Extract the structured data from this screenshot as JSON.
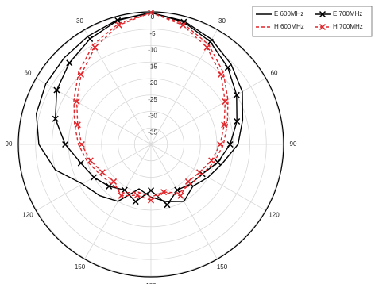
{
  "chart_data": {
    "type": "polar",
    "theta": [
      0,
      15,
      30,
      45,
      60,
      75,
      90,
      105,
      120,
      135,
      150,
      165,
      180,
      195,
      210,
      225,
      240,
      255,
      270,
      285,
      300,
      315,
      330,
      345
    ],
    "series": [
      {
        "name": "E 600MHz",
        "color": "#000000",
        "dash": "solid",
        "marker": "none",
        "values": [
          0,
          -1.2,
          -3.2,
          -5.6,
          -8,
          -11.2,
          -13.6,
          -17.6,
          -20,
          -22,
          -20,
          -22,
          -24,
          -26,
          -20,
          -18,
          -16,
          -10,
          -6,
          -4,
          -3.2,
          -2.8,
          -2,
          -0.8
        ]
      },
      {
        "name": "E 700MHz",
        "color": "#000000",
        "dash": "solid",
        "marker": "x",
        "values": [
          0,
          -1.5,
          -4,
          -7,
          -10,
          -13,
          -16,
          -19,
          -22,
          -23,
          -24,
          -21,
          -26,
          -22,
          -24,
          -22,
          -20,
          -18,
          -14,
          -10,
          -7,
          -5,
          -3,
          -1
        ]
      },
      {
        "name": "H 600MHz",
        "color": "#e0262b",
        "dash": "dashed",
        "marker": "none",
        "values": [
          0,
          -2,
          -5,
          -9,
          -13,
          -16,
          -18,
          -20,
          -22,
          -23,
          -23,
          -25,
          -24,
          -25,
          -23,
          -23,
          -22,
          -20,
          -18,
          -16,
          -13,
          -9,
          -5,
          -2
        ]
      },
      {
        "name": "H 700MHz",
        "color": "#e0262b",
        "dash": "dashed",
        "marker": "x",
        "values": [
          0,
          -2.5,
          -6,
          -10,
          -14,
          -17,
          -19,
          -21,
          -23,
          -24,
          -22,
          -25,
          -23,
          -24,
          -22,
          -24,
          -23,
          -21,
          -19,
          -17,
          -14,
          -10,
          -6,
          -2.5
        ]
      }
    ],
    "rlim": [
      -40,
      0
    ],
    "rticks": [
      0,
      -5,
      -10,
      -15,
      -20,
      -25,
      -30,
      -35
    ],
    "thetaticks": [
      30,
      60,
      90,
      120,
      150,
      180,
      {
        "value": 210,
        "label": "150"
      },
      {
        "value": 240,
        "label": "120"
      },
      {
        "value": 270,
        "label": "90"
      },
      {
        "value": 300,
        "label": "60"
      },
      {
        "value": 330,
        "label": "30"
      }
    ],
    "grid": true
  }
}
